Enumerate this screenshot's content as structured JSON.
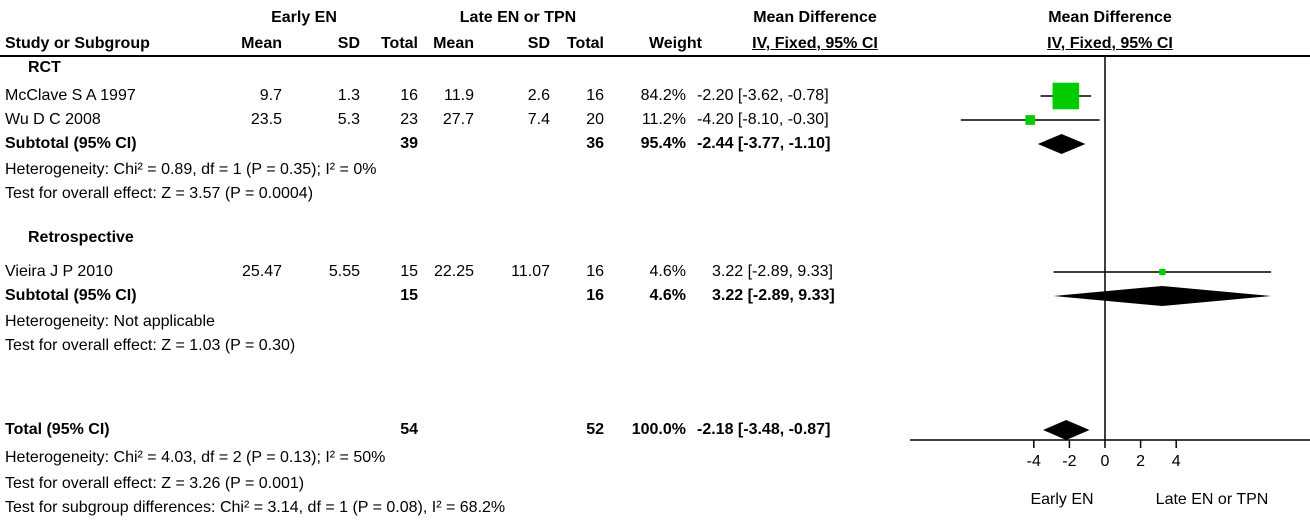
{
  "header": {
    "group_early": "Early EN",
    "group_late": "Late EN or TPN",
    "md_col": "Mean Difference",
    "plot_col": "Mean Difference",
    "study_col": "Study or Subgroup",
    "mean": "Mean",
    "sd": "SD",
    "total": "Total",
    "weight": "Weight",
    "ci_col": "IV, Fixed, 95% CI",
    "plot_ci_col": "IV, Fixed, 95% CI"
  },
  "subgroups": [
    {
      "title": "RCT",
      "subtotal_label": "Subtotal (95% CI)",
      "subtotal_e_total": "39",
      "subtotal_c_total": "36",
      "subtotal_weight": "95.4%",
      "subtotal_ci": "-2.44 [-3.77, -1.10]",
      "heterogeneity": "Heterogeneity: Chi² = 0.89, df = 1 (P = 0.35); I² = 0%",
      "overall": "Test for overall effect: Z = 3.57 (P = 0.0004)"
    },
    {
      "title": "Retrospective",
      "subtotal_label": "Subtotal (95% CI)",
      "subtotal_e_total": "15",
      "subtotal_c_total": "16",
      "subtotal_weight": "4.6%",
      "subtotal_ci": "3.22 [-2.89, 9.33]",
      "heterogeneity": "Heterogeneity: Not applicable",
      "overall": "Test for overall effect: Z = 1.03 (P = 0.30)"
    }
  ],
  "studies": [
    {
      "name": "McClave S A 1997",
      "e_mean": "9.7",
      "e_sd": "1.3",
      "e_total": "16",
      "c_mean": "11.9",
      "c_sd": "2.6",
      "c_total": "16",
      "weight": "84.2%",
      "ci": "-2.20 [-3.62, -0.78]"
    },
    {
      "name": "Wu D C  2008",
      "e_mean": "23.5",
      "e_sd": "5.3",
      "e_total": "23",
      "c_mean": "27.7",
      "c_sd": "7.4",
      "c_total": "20",
      "weight": "11.2%",
      "ci": "-4.20 [-8.10, -0.30]"
    },
    {
      "name": "Vieira J P  2010",
      "e_mean": "25.47",
      "e_sd": "5.55",
      "e_total": "15",
      "c_mean": "22.25",
      "c_sd": "11.07",
      "c_total": "16",
      "weight": "4.6%",
      "ci": "3.22 [-2.89, 9.33]"
    }
  ],
  "total": {
    "label": "Total (95% CI)",
    "e_total": "54",
    "c_total": "52",
    "weight": "100.0%",
    "ci": "-2.18 [-3.48, -0.87]",
    "heterogeneity": "Heterogeneity: Chi² = 4.03, df = 2 (P = 0.13); I² = 50%",
    "overall": "Test for overall effect: Z = 3.26 (P = 0.001)",
    "subgroup_diff": "Test for subgroup differences: Chi² = 3.14, df = 1 (P = 0.08), I² = 68.2%"
  },
  "chart_data": {
    "type": "scatter",
    "subtype": "forest-plot",
    "xlim": [
      -10,
      10
    ],
    "visible_ticks": [
      -4,
      -2,
      0,
      2,
      4
    ],
    "reference_line": 0,
    "left_favours": "Early EN",
    "right_favours": "Late EN or TPN",
    "marker_color": "#00cc00",
    "diamond_color": "#000000",
    "studies": [
      {
        "name": "McClave S A 1997",
        "md": -2.2,
        "lo": -3.62,
        "hi": -0.78,
        "weight": 84.2
      },
      {
        "name": "Wu D C  2008",
        "md": -4.2,
        "lo": -8.1,
        "hi": -0.3,
        "weight": 11.2
      },
      {
        "name": "Vieira J P  2010",
        "md": 3.22,
        "lo": -2.89,
        "hi": 9.33,
        "weight": 4.6
      }
    ],
    "diamonds": [
      {
        "name": "RCT subtotal",
        "md": -2.44,
        "lo": -3.77,
        "hi": -1.1
      },
      {
        "name": "Retrospective subtotal",
        "md": 3.22,
        "lo": -2.89,
        "hi": 9.33
      },
      {
        "name": "Total",
        "md": -2.18,
        "lo": -3.48,
        "hi": -0.87
      }
    ]
  }
}
